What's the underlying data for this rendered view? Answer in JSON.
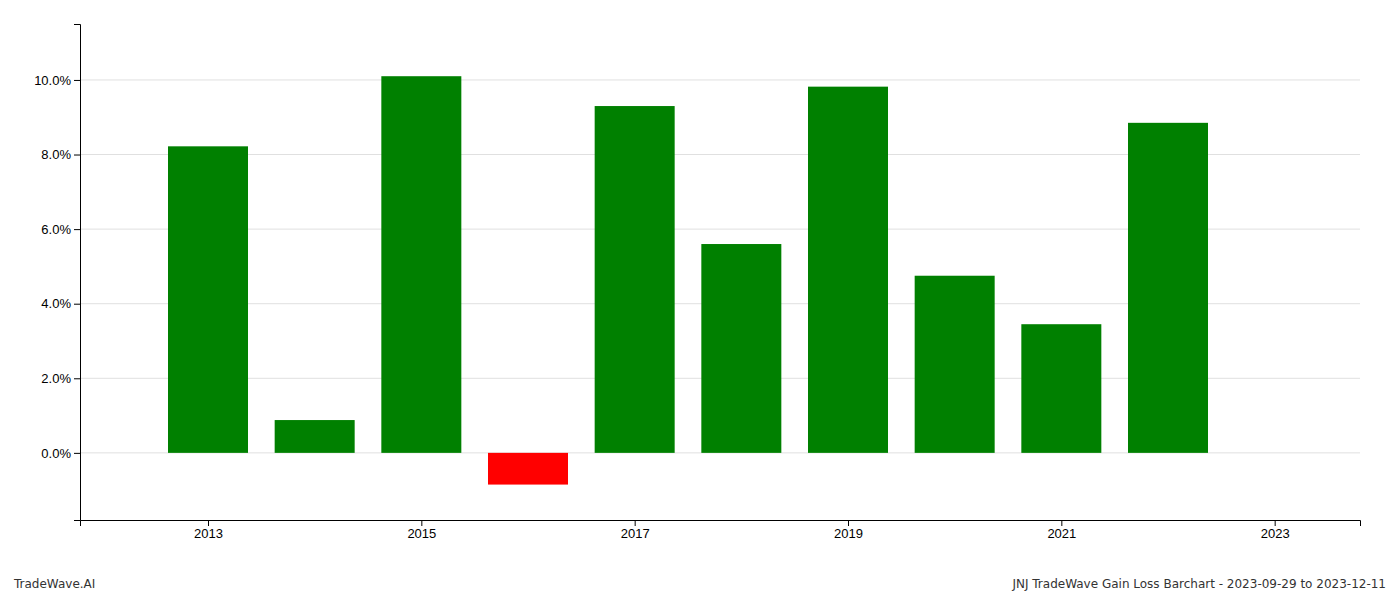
{
  "chart_data": {
    "type": "bar",
    "title": "JNJ TradeWave Gain Loss Barchart - 2023-09-29 to 2023-12-11",
    "annotations": [
      "TradeWave.AI"
    ],
    "x": [
      2013,
      2014,
      2015,
      2016,
      2017,
      2018,
      2019,
      2020,
      2021,
      2022
    ],
    "values": [
      0.0822,
      0.0088,
      0.101,
      -0.0085,
      0.093,
      0.056,
      0.0982,
      0.0475,
      0.0345,
      0.0885
    ],
    "colors": [
      "#008000",
      "#008000",
      "#008000",
      "#ff0000",
      "#008000",
      "#008000",
      "#008000",
      "#008000",
      "#008000",
      "#008000"
    ],
    "xlim": [
      2011.8,
      2023.8
    ],
    "xticks": [
      2013,
      2015,
      2017,
      2019,
      2021,
      2023
    ],
    "ylim": [
      -0.018,
      0.115
    ],
    "yticks": [
      {
        "value": 0.0,
        "label": "0.0%"
      },
      {
        "value": 0.02,
        "label": "2.0%"
      },
      {
        "value": 0.04,
        "label": "4.0%"
      },
      {
        "value": 0.06,
        "label": "6.0%"
      },
      {
        "value": 0.08,
        "label": "8.0%"
      },
      {
        "value": 0.1,
        "label": "10.0%"
      }
    ],
    "grid": true
  }
}
